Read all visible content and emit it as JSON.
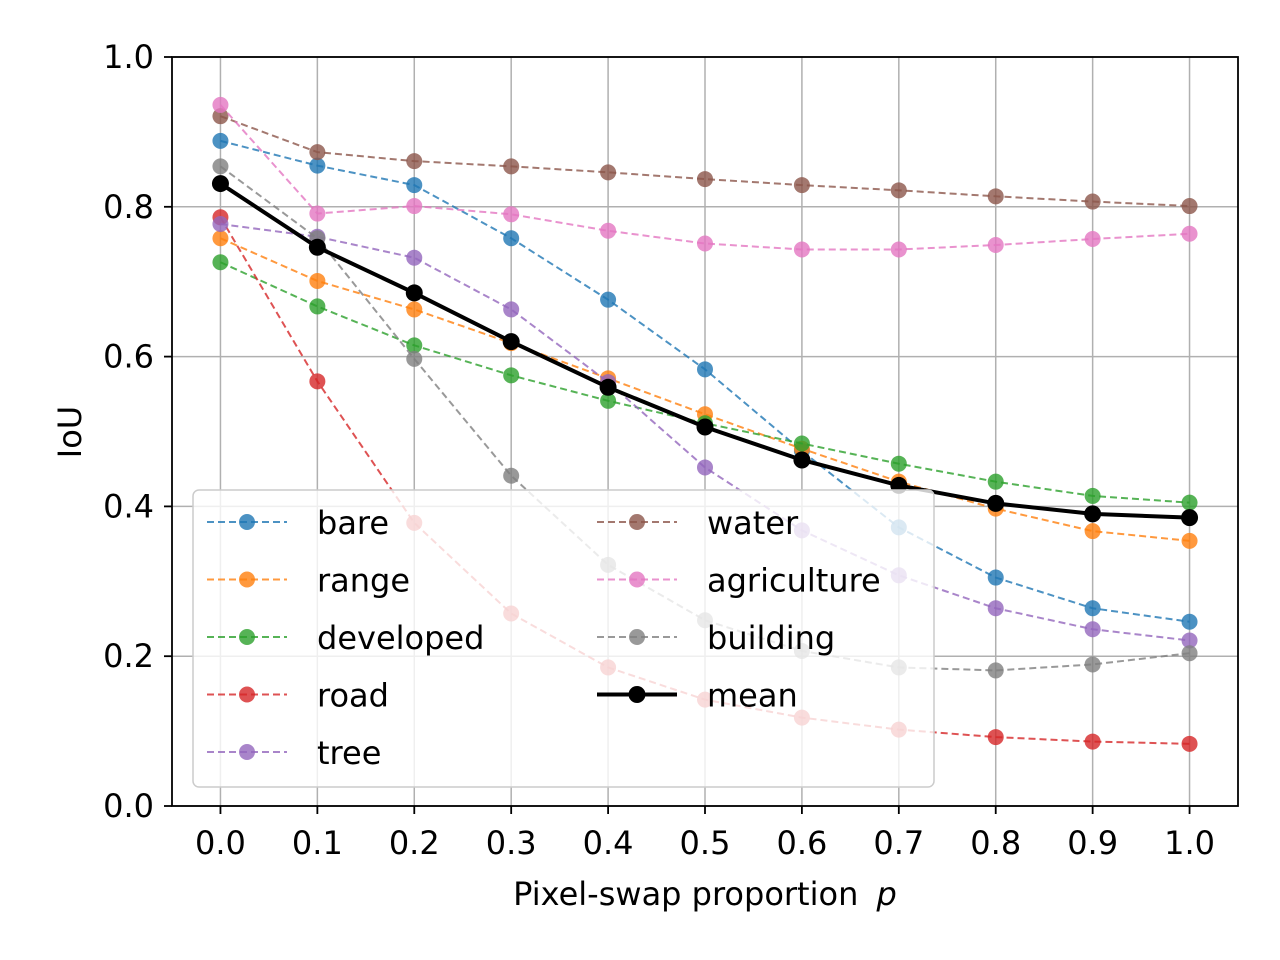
{
  "chart_data": {
    "type": "line",
    "title": "",
    "xlabel": "Pixel-swap proportion",
    "xlabel_var": "p",
    "ylabel": "IoU",
    "xlim": [
      -0.05,
      1.05
    ],
    "ylim": [
      0.0,
      1.0
    ],
    "grid": true,
    "legend_position": "lower-left",
    "x": [
      0.0,
      0.1,
      0.2,
      0.3,
      0.4,
      0.5,
      0.6,
      0.7,
      0.8,
      0.9,
      1.0
    ],
    "x_tick_labels": [
      "0.0",
      "0.1",
      "0.2",
      "0.3",
      "0.4",
      "0.5",
      "0.6",
      "0.7",
      "0.8",
      "0.9",
      "1.0"
    ],
    "y_ticks": [
      0.0,
      0.2,
      0.4,
      0.6,
      0.8,
      1.0
    ],
    "y_tick_labels": [
      "0.0",
      "0.2",
      "0.4",
      "0.6",
      "0.8",
      "1.0"
    ],
    "series": [
      {
        "name": "bare",
        "color": "#1f77b4",
        "style": "dashed",
        "values": [
          0.888,
          0.855,
          0.829,
          0.758,
          0.676,
          0.583,
          0.474,
          0.372,
          0.305,
          0.264,
          0.246
        ]
      },
      {
        "name": "range",
        "color": "#ff7f0e",
        "style": "dashed",
        "values": [
          0.758,
          0.701,
          0.663,
          0.618,
          0.571,
          0.523,
          0.477,
          0.433,
          0.397,
          0.367,
          0.354
        ]
      },
      {
        "name": "developed",
        "color": "#2ca02c",
        "style": "dashed",
        "values": [
          0.726,
          0.667,
          0.615,
          0.575,
          0.541,
          0.511,
          0.484,
          0.457,
          0.433,
          0.414,
          0.405
        ]
      },
      {
        "name": "road",
        "color": "#d62728",
        "style": "dashed",
        "values": [
          0.786,
          0.567,
          0.378,
          0.257,
          0.185,
          0.142,
          0.118,
          0.102,
          0.092,
          0.086,
          0.083
        ]
      },
      {
        "name": "tree",
        "color": "#9467bd",
        "style": "dashed",
        "values": [
          0.777,
          0.76,
          0.732,
          0.663,
          0.566,
          0.452,
          0.368,
          0.308,
          0.264,
          0.236,
          0.221
        ]
      },
      {
        "name": "water",
        "color": "#8c564b",
        "style": "dashed",
        "values": [
          0.921,
          0.873,
          0.861,
          0.854,
          0.846,
          0.837,
          0.829,
          0.822,
          0.814,
          0.807,
          0.801
        ]
      },
      {
        "name": "agriculture",
        "color": "#e377c2",
        "style": "dashed",
        "values": [
          0.936,
          0.791,
          0.801,
          0.79,
          0.768,
          0.751,
          0.743,
          0.743,
          0.749,
          0.757,
          0.764
        ]
      },
      {
        "name": "building",
        "color": "#7f7f7f",
        "style": "dashed",
        "values": [
          0.854,
          0.758,
          0.597,
          0.441,
          0.322,
          0.248,
          0.207,
          0.185,
          0.181,
          0.189,
          0.204
        ]
      },
      {
        "name": "mean",
        "color": "#000000",
        "style": "solid",
        "values": [
          0.831,
          0.746,
          0.685,
          0.62,
          0.559,
          0.506,
          0.462,
          0.428,
          0.404,
          0.39,
          0.385
        ]
      }
    ]
  }
}
